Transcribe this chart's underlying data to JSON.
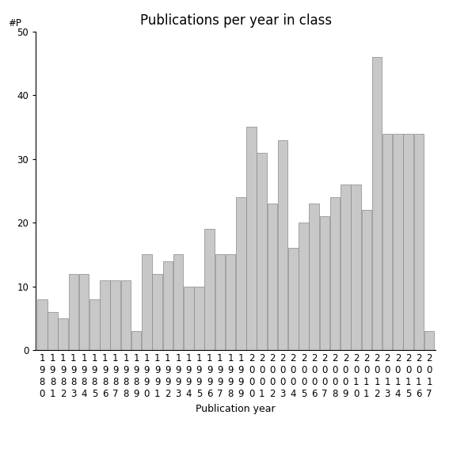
{
  "title": "Publications per year in class",
  "xlabel": "Publication year",
  "ylabel": "#P",
  "years": [
    "1980",
    "1981",
    "1982",
    "1983",
    "1984",
    "1985",
    "1986",
    "1987",
    "1988",
    "1989",
    "1990",
    "1991",
    "1992",
    "1993",
    "1994",
    "1995",
    "1996",
    "1997",
    "1998",
    "1999",
    "2000",
    "2001",
    "2002",
    "2003",
    "2004",
    "2005",
    "2006",
    "2007",
    "2008",
    "2009",
    "2010",
    "2011",
    "2012",
    "2013",
    "2014",
    "2015",
    "2016",
    "2017"
  ],
  "values": [
    8,
    6,
    5,
    12,
    12,
    8,
    11,
    11,
    11,
    3,
    15,
    12,
    14,
    15,
    10,
    10,
    19,
    15,
    15,
    24,
    35,
    31,
    23,
    33,
    16,
    20,
    23,
    21,
    24,
    26,
    26,
    22,
    46,
    34,
    34,
    34,
    34,
    3
  ],
  "bar_color": "#c8c8c8",
  "bar_edge_color": "#888888",
  "ylim": [
    0,
    50
  ],
  "yticks": [
    0,
    10,
    20,
    30,
    40,
    50
  ],
  "background_color": "#ffffff",
  "title_fontsize": 12,
  "label_fontsize": 9,
  "tick_fontsize": 8.5
}
